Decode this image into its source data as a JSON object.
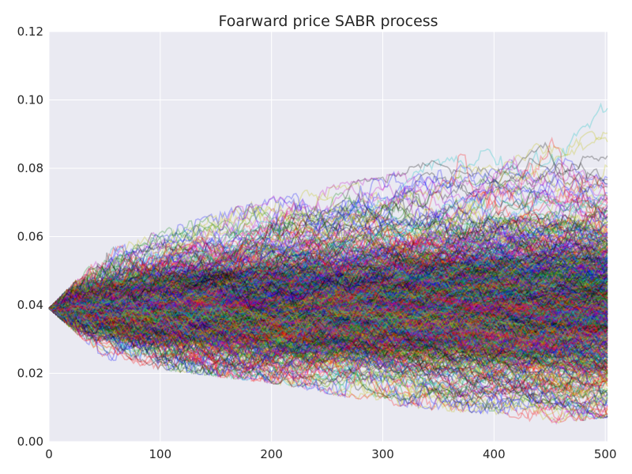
{
  "chart_data": {
    "type": "line",
    "title": "Foarward price SABR process",
    "xlabel": "",
    "ylabel": "",
    "xlim": [
      0,
      502
    ],
    "ylim": [
      0.0,
      0.12
    ],
    "xticks": [
      0,
      100,
      200,
      300,
      400,
      500
    ],
    "xtick_labels": [
      "0",
      "100",
      "200",
      "300",
      "400",
      "500"
    ],
    "yticks": [
      0.0,
      0.02,
      0.04,
      0.06,
      0.08,
      0.1,
      0.12
    ],
    "ytick_labels": [
      "0.00",
      "0.02",
      "0.04",
      "0.06",
      "0.08",
      "0.10",
      "0.12"
    ],
    "grid": true,
    "legend": false,
    "background_color": "#eaeaf2",
    "grid_color": "#ffffff",
    "series_colors": [
      "#0000ff",
      "#008000",
      "#ff0000",
      "#00bfbf",
      "#bf00bf",
      "#bfbf00",
      "#000000"
    ],
    "line_alpha": 0.25,
    "path_count": 1000,
    "steps": 502,
    "initial_value": 0.039,
    "envelope": {
      "x": [
        0,
        50,
        100,
        150,
        200,
        250,
        300,
        350,
        400,
        450,
        500
      ],
      "upper": [
        0.039,
        0.056,
        0.062,
        0.067,
        0.072,
        0.075,
        0.078,
        0.083,
        0.086,
        0.094,
        0.101
      ],
      "lower": [
        0.039,
        0.024,
        0.021,
        0.019,
        0.017,
        0.014,
        0.011,
        0.009,
        0.008,
        0.005,
        0.007
      ]
    }
  }
}
